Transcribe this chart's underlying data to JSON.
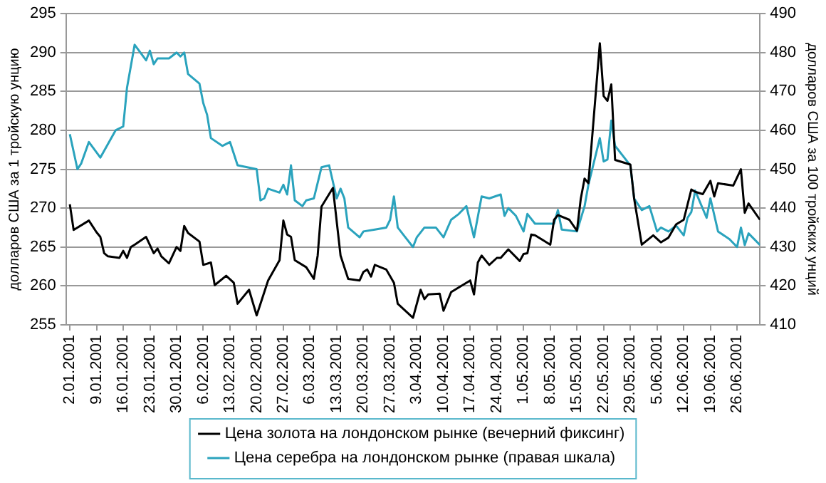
{
  "chart_data": {
    "type": "line",
    "ylabel": "долларов США за 1 тройскую унцию",
    "y2label": "долларов США за 100 тройских унций",
    "xlim": [
      "2001-01-01",
      "2001-07-02"
    ],
    "xticks": [
      {
        "value": "2001-01-02",
        "label": "2.01.2001"
      },
      {
        "value": "2001-01-09",
        "label": "9.01.2001"
      },
      {
        "value": "2001-01-16",
        "label": "16.01.2001"
      },
      {
        "value": "2001-01-23",
        "label": "23.01.2001"
      },
      {
        "value": "2001-01-30",
        "label": "30.01.2001"
      },
      {
        "value": "2001-02-06",
        "label": "6.02.2001"
      },
      {
        "value": "2001-02-13",
        "label": "13.02.2001"
      },
      {
        "value": "2001-02-20",
        "label": "20.02.2001"
      },
      {
        "value": "2001-02-27",
        "label": "27.02.2001"
      },
      {
        "value": "2001-03-06",
        "label": "6.03.2001"
      },
      {
        "value": "2001-03-13",
        "label": "13.03.2001"
      },
      {
        "value": "2001-03-20",
        "label": "20.03.2001"
      },
      {
        "value": "2001-03-27",
        "label": "27.03.2001"
      },
      {
        "value": "2001-04-03",
        "label": "3.04.2001"
      },
      {
        "value": "2001-04-10",
        "label": "10.04.2001"
      },
      {
        "value": "2001-04-17",
        "label": "17.04.2001"
      },
      {
        "value": "2001-04-24",
        "label": "24.04.2001"
      },
      {
        "value": "2001-05-01",
        "label": "1.05.2001"
      },
      {
        "value": "2001-05-08",
        "label": "8.05.2001"
      },
      {
        "value": "2001-05-15",
        "label": "15.05.2001"
      },
      {
        "value": "2001-05-22",
        "label": "22.05.2001"
      },
      {
        "value": "2001-05-29",
        "label": "29.05.2001"
      },
      {
        "value": "2001-06-05",
        "label": "5.06.2001"
      },
      {
        "value": "2001-06-12",
        "label": "12.06.2001"
      },
      {
        "value": "2001-06-19",
        "label": "19.06.2001"
      },
      {
        "value": "2001-06-26",
        "label": "26.06.2001"
      }
    ],
    "ylim": [
      255,
      295
    ],
    "yticks": [
      255,
      260,
      265,
      270,
      275,
      280,
      285,
      290,
      295
    ],
    "y2lim": [
      410,
      490
    ],
    "y2ticks": [
      410,
      420,
      430,
      440,
      450,
      460,
      470,
      480,
      490
    ],
    "grid": "y",
    "legend": "bottom",
    "marker": "none",
    "line_style": "solid",
    "series": [
      {
        "name": "Цена золота на лондонском рынке (вечерний фиксинг)",
        "color": "#000000",
        "x": [
          "2001-01-02",
          "2001-01-03",
          "2001-01-07",
          "2001-01-09",
          "2001-01-10",
          "2001-01-11",
          "2001-01-12",
          "2001-01-15",
          "2001-01-16",
          "2001-01-17",
          "2001-01-18",
          "2001-01-19",
          "2001-01-22",
          "2001-01-24",
          "2001-01-25",
          "2001-01-26",
          "2001-01-28",
          "2001-01-30",
          "2001-01-31",
          "2001-02-01",
          "2001-02-02",
          "2001-02-05",
          "2001-02-06",
          "2001-02-08",
          "2001-02-09",
          "2001-02-12",
          "2001-02-14",
          "2001-02-15",
          "2001-02-18",
          "2001-02-20",
          "2001-02-23",
          "2001-02-26",
          "2001-02-27",
          "2001-02-28",
          "2001-03-01",
          "2001-03-02",
          "2001-03-05",
          "2001-03-07",
          "2001-03-08",
          "2001-03-09",
          "2001-03-12",
          "2001-03-14",
          "2001-03-16",
          "2001-03-19",
          "2001-03-20",
          "2001-03-21",
          "2001-03-22",
          "2001-03-23",
          "2001-03-26",
          "2001-03-28",
          "2001-03-29",
          "2001-04-02",
          "2001-04-04",
          "2001-04-05",
          "2001-04-06",
          "2001-04-09",
          "2001-04-10",
          "2001-04-12",
          "2001-04-15",
          "2001-04-17",
          "2001-04-18",
          "2001-04-19",
          "2001-04-20",
          "2001-04-22",
          "2001-04-24",
          "2001-04-25",
          "2001-04-27",
          "2001-04-30",
          "2001-05-01",
          "2001-05-02",
          "2001-05-03",
          "2001-05-04",
          "2001-05-08",
          "2001-05-09",
          "2001-05-10",
          "2001-05-13",
          "2001-05-15",
          "2001-05-16",
          "2001-05-17",
          "2001-05-18",
          "2001-05-21",
          "2001-05-22",
          "2001-05-23",
          "2001-05-24",
          "2001-05-25",
          "2001-05-29",
          "2001-05-30",
          "2001-06-01",
          "2001-06-04",
          "2001-06-06",
          "2001-06-08",
          "2001-06-10",
          "2001-06-12",
          "2001-06-14",
          "2001-06-15",
          "2001-06-17",
          "2001-06-19",
          "2001-06-20",
          "2001-06-21",
          "2001-06-25",
          "2001-06-27",
          "2001-06-28",
          "2001-06-29",
          "2001-07-02"
        ],
        "values": [
          270.5,
          267.2,
          268.4,
          266.9,
          266.3,
          264.2,
          263.8,
          263.6,
          264.5,
          263.6,
          265,
          265.3,
          266.3,
          264.2,
          264.8,
          263.8,
          262.9,
          265,
          264.5,
          267.7,
          266.8,
          265.7,
          262.7,
          263,
          260.1,
          261.3,
          260.4,
          257.7,
          259.5,
          256.2,
          260.7,
          263.3,
          268.4,
          266.6,
          266.3,
          263.3,
          262.4,
          260.9,
          263.9,
          270.2,
          272.6,
          263.9,
          260.9,
          260.7,
          261.8,
          262.1,
          261.2,
          262.7,
          262.1,
          260.4,
          257.7,
          255.9,
          259.5,
          258.3,
          258.9,
          259,
          256.8,
          259.2,
          260.1,
          260.7,
          258.9,
          263,
          263.9,
          262.7,
          263.6,
          263.6,
          264.7,
          263.2,
          264.1,
          264.2,
          266.6,
          266.5,
          265.3,
          268.5,
          269.1,
          268.5,
          267.1,
          271.2,
          273.8,
          273.2,
          291.2,
          284.4,
          283.8,
          285.9,
          276.2,
          275.6,
          271.2,
          265.3,
          266.5,
          265.6,
          266.2,
          267.9,
          268.5,
          272.4,
          272.1,
          271.8,
          273.5,
          271.5,
          273.2,
          272.9,
          275,
          269.4,
          270.6,
          268.5
        ]
      },
      {
        "name": "Цена серебра на лондонском рынке (правая шкала)",
        "color": "#2aa3bd",
        "axis": "y2",
        "x": [
          "2001-01-02",
          "2001-01-04",
          "2001-01-05",
          "2001-01-07",
          "2001-01-10",
          "2001-01-14",
          "2001-01-16",
          "2001-01-17",
          "2001-01-19",
          "2001-01-22",
          "2001-01-23",
          "2001-01-24",
          "2001-01-25",
          "2001-01-28",
          "2001-01-30",
          "2001-01-31",
          "2001-02-01",
          "2001-02-02",
          "2001-02-05",
          "2001-02-06",
          "2001-02-07",
          "2001-02-08",
          "2001-02-11",
          "2001-02-13",
          "2001-02-15",
          "2001-02-20",
          "2001-02-21",
          "2001-02-22",
          "2001-02-23",
          "2001-02-26",
          "2001-02-27",
          "2001-02-28",
          "2001-03-01",
          "2001-03-02",
          "2001-03-04",
          "2001-03-05",
          "2001-03-07",
          "2001-03-09",
          "2001-03-11",
          "2001-03-13",
          "2001-03-14",
          "2001-03-15",
          "2001-03-16",
          "2001-03-19",
          "2001-03-20",
          "2001-03-23",
          "2001-03-26",
          "2001-03-27",
          "2001-03-28",
          "2001-03-29",
          "2001-03-31",
          "2001-04-02",
          "2001-04-03",
          "2001-04-05",
          "2001-04-08",
          "2001-04-10",
          "2001-04-12",
          "2001-04-14",
          "2001-04-16",
          "2001-04-18",
          "2001-04-20",
          "2001-04-22",
          "2001-04-25",
          "2001-04-26",
          "2001-04-27",
          "2001-04-29",
          "2001-05-01",
          "2001-05-02",
          "2001-05-04",
          "2001-05-09",
          "2001-05-10",
          "2001-05-11",
          "2001-05-15",
          "2001-05-17",
          "2001-05-18",
          "2001-05-21",
          "2001-05-22",
          "2001-05-23",
          "2001-05-24",
          "2001-05-25",
          "2001-05-29",
          "2001-05-30",
          "2001-06-01",
          "2001-06-03",
          "2001-06-05",
          "2001-06-06",
          "2001-06-08",
          "2001-06-10",
          "2001-06-12",
          "2001-06-13",
          "2001-06-14",
          "2001-06-15",
          "2001-06-18",
          "2001-06-19",
          "2001-06-21",
          "2001-06-24",
          "2001-06-26",
          "2001-06-27",
          "2001-06-28",
          "2001-06-29",
          "2001-07-02"
        ],
        "values": [
          459,
          450,
          451.5,
          457,
          453,
          460,
          461,
          471,
          482,
          478,
          480.5,
          477,
          478.5,
          478.5,
          480,
          479,
          480,
          474.5,
          472,
          467,
          464,
          458,
          456,
          457,
          451,
          450,
          442,
          442.5,
          445,
          444,
          446,
          443.5,
          451,
          442,
          440.5,
          442,
          442.5,
          450.5,
          451,
          442.5,
          445,
          442.5,
          435,
          432.5,
          434,
          434.5,
          435,
          437,
          443,
          435,
          432.5,
          430,
          432.5,
          435,
          435,
          432.5,
          437,
          438.5,
          440.5,
          432.5,
          443,
          442.5,
          443.5,
          438,
          440,
          438,
          434,
          438.5,
          436,
          436,
          439.5,
          434.5,
          434,
          440.5,
          446,
          458,
          452,
          452.5,
          462.5,
          456,
          451,
          442.5,
          439.5,
          440.5,
          434,
          435,
          434,
          435.5,
          433,
          437.5,
          439,
          444.5,
          437.5,
          442.5,
          434,
          432,
          430,
          435,
          430.5,
          433.5,
          430.5
        ]
      }
    ]
  }
}
